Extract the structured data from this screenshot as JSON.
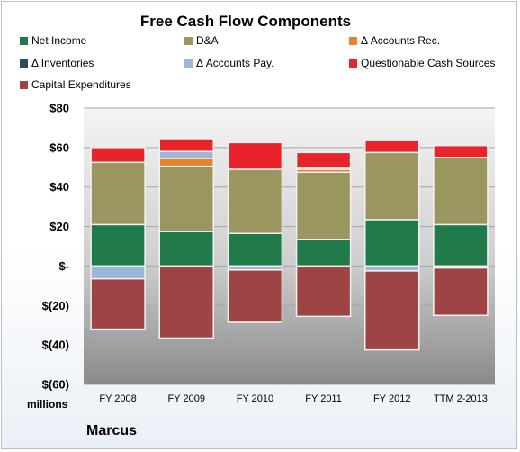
{
  "chart_data": {
    "type": "bar",
    "stacked": true,
    "title": "Free Cash Flow Components",
    "categories": [
      "FY 2008",
      "FY 2009",
      "FY 2010",
      "FY 2011",
      "FY 2012",
      "TTM 2-2013"
    ],
    "series": [
      {
        "name": "Net Income",
        "color": "#217a4a",
        "values": [
          21,
          17.5,
          16.5,
          13.5,
          23.5,
          21
        ]
      },
      {
        "name": "D&A",
        "color": "#9b9560",
        "values": [
          31.5,
          33,
          32.5,
          34,
          34,
          34
        ]
      },
      {
        "name": "Δ Accounts Rec.",
        "color": "#e8832a",
        "values": [
          0,
          4,
          0,
          1.5,
          0,
          0
        ]
      },
      {
        "name": "Δ Inventories",
        "color": "#2d4a5e",
        "values": [
          0,
          0,
          0,
          0,
          0,
          0
        ]
      },
      {
        "name": "Δ Accounts Pay.",
        "color": "#9bb8d8",
        "values": [
          -6.5,
          3.5,
          -2,
          1,
          -2.5,
          -1
        ]
      },
      {
        "name": "Questionable Cash Sources",
        "color": "#e8242a",
        "values": [
          7.5,
          6.5,
          13.5,
          7.5,
          6,
          6
        ]
      },
      {
        "name": "Capital Expenditures",
        "color": "#9e4444",
        "values": [
          -25.5,
          -36.5,
          -26.5,
          -25.5,
          -40,
          -24
        ]
      }
    ],
    "ylim": [
      -60,
      80
    ],
    "yticks": [
      -60,
      -40,
      -20,
      0,
      20,
      40,
      60,
      80
    ],
    "ytick_labels": [
      "$(60)",
      "$(40)",
      "$(20)",
      "$-",
      "$20",
      "$40",
      "$60",
      "$80"
    ],
    "ylabel": "millions",
    "grid": true,
    "legend_position": "top"
  },
  "footer": {
    "brand": "Marcus"
  }
}
